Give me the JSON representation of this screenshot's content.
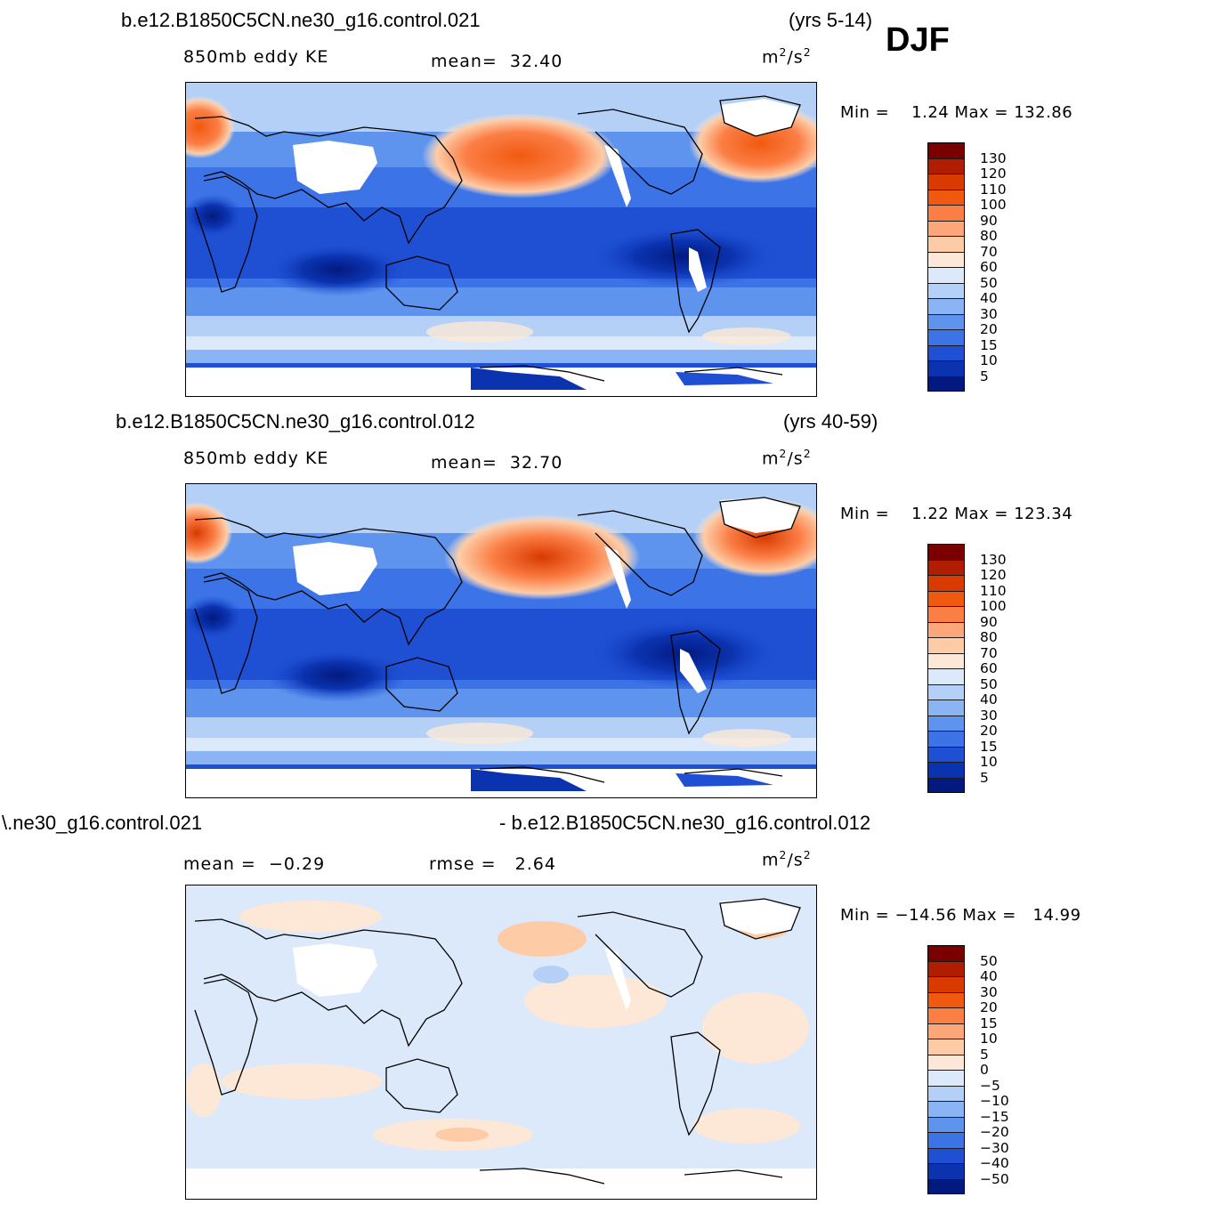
{
  "season": "DJF",
  "panels": [
    {
      "case_title": "b.e12.B1850C5CN.ne30_g16.control.021",
      "years": "(yrs 5-14)",
      "variable": "850mb  eddy  KE",
      "stat1_label": "mean=",
      "stat1_value": "32.40",
      "units_base": "m",
      "units_exp1": "2",
      "units_mid": "/s",
      "units_exp2": "2",
      "min_label": "Min  =",
      "min_value": "1.24",
      "max_label": "Max  =",
      "max_value": "132.86"
    },
    {
      "case_title": "b.e12.B1850C5CN.ne30_g16.control.012",
      "years": "(yrs 40-59)",
      "variable": "850mb  eddy  KE",
      "stat1_label": "mean=",
      "stat1_value": "32.70",
      "units_base": "m",
      "units_exp1": "2",
      "units_mid": "/s",
      "units_exp2": "2",
      "min_label": "Min  =",
      "min_value": "1.22",
      "max_label": "Max  =",
      "max_value": "123.34"
    },
    {
      "case_title_left": "\\.ne30_g16.control.021",
      "case_title_right": "- b.e12.B1850C5CN.ne30_g16.control.012",
      "stat1_label": "mean  =",
      "stat1_value": "−0.29",
      "stat2_label": "rmse  =",
      "stat2_value": "2.64",
      "units_base": "m",
      "units_exp1": "2",
      "units_mid": "/s",
      "units_exp2": "2",
      "min_label": "Min  =",
      "min_value": "−14.56",
      "max_label": "Max  =",
      "max_value": "14.99"
    }
  ],
  "colorbar_ke": {
    "labels": [
      "130",
      "120",
      "110",
      "100",
      "90",
      "80",
      "70",
      "60",
      "50",
      "40",
      "30",
      "20",
      "15",
      "10",
      "5"
    ],
    "colors": [
      "#7a0000",
      "#b01d00",
      "#d83a00",
      "#f05a10",
      "#fb7e45",
      "#fca679",
      "#fdcca7",
      "#fde8d7",
      "#dbe9fb",
      "#b4d0f7",
      "#8ab4f3",
      "#5e94ee",
      "#3c73e6",
      "#1f50d4",
      "#0b33b0",
      "#021a80"
    ]
  },
  "colorbar_diff": {
    "labels": [
      "50",
      "40",
      "30",
      "20",
      "15",
      "10",
      "5",
      "0",
      "−5",
      "−10",
      "−15",
      "−20",
      "−30",
      "−40",
      "−50"
    ],
    "colors": [
      "#7a0000",
      "#b01d00",
      "#d83a00",
      "#f05a10",
      "#fb7e45",
      "#fca679",
      "#fdcca7",
      "#fde8d7",
      "#dbe9fb",
      "#b4d0f7",
      "#8ab4f3",
      "#5e94ee",
      "#3c73e6",
      "#1f50d4",
      "#0b33b0",
      "#021a80"
    ]
  }
}
